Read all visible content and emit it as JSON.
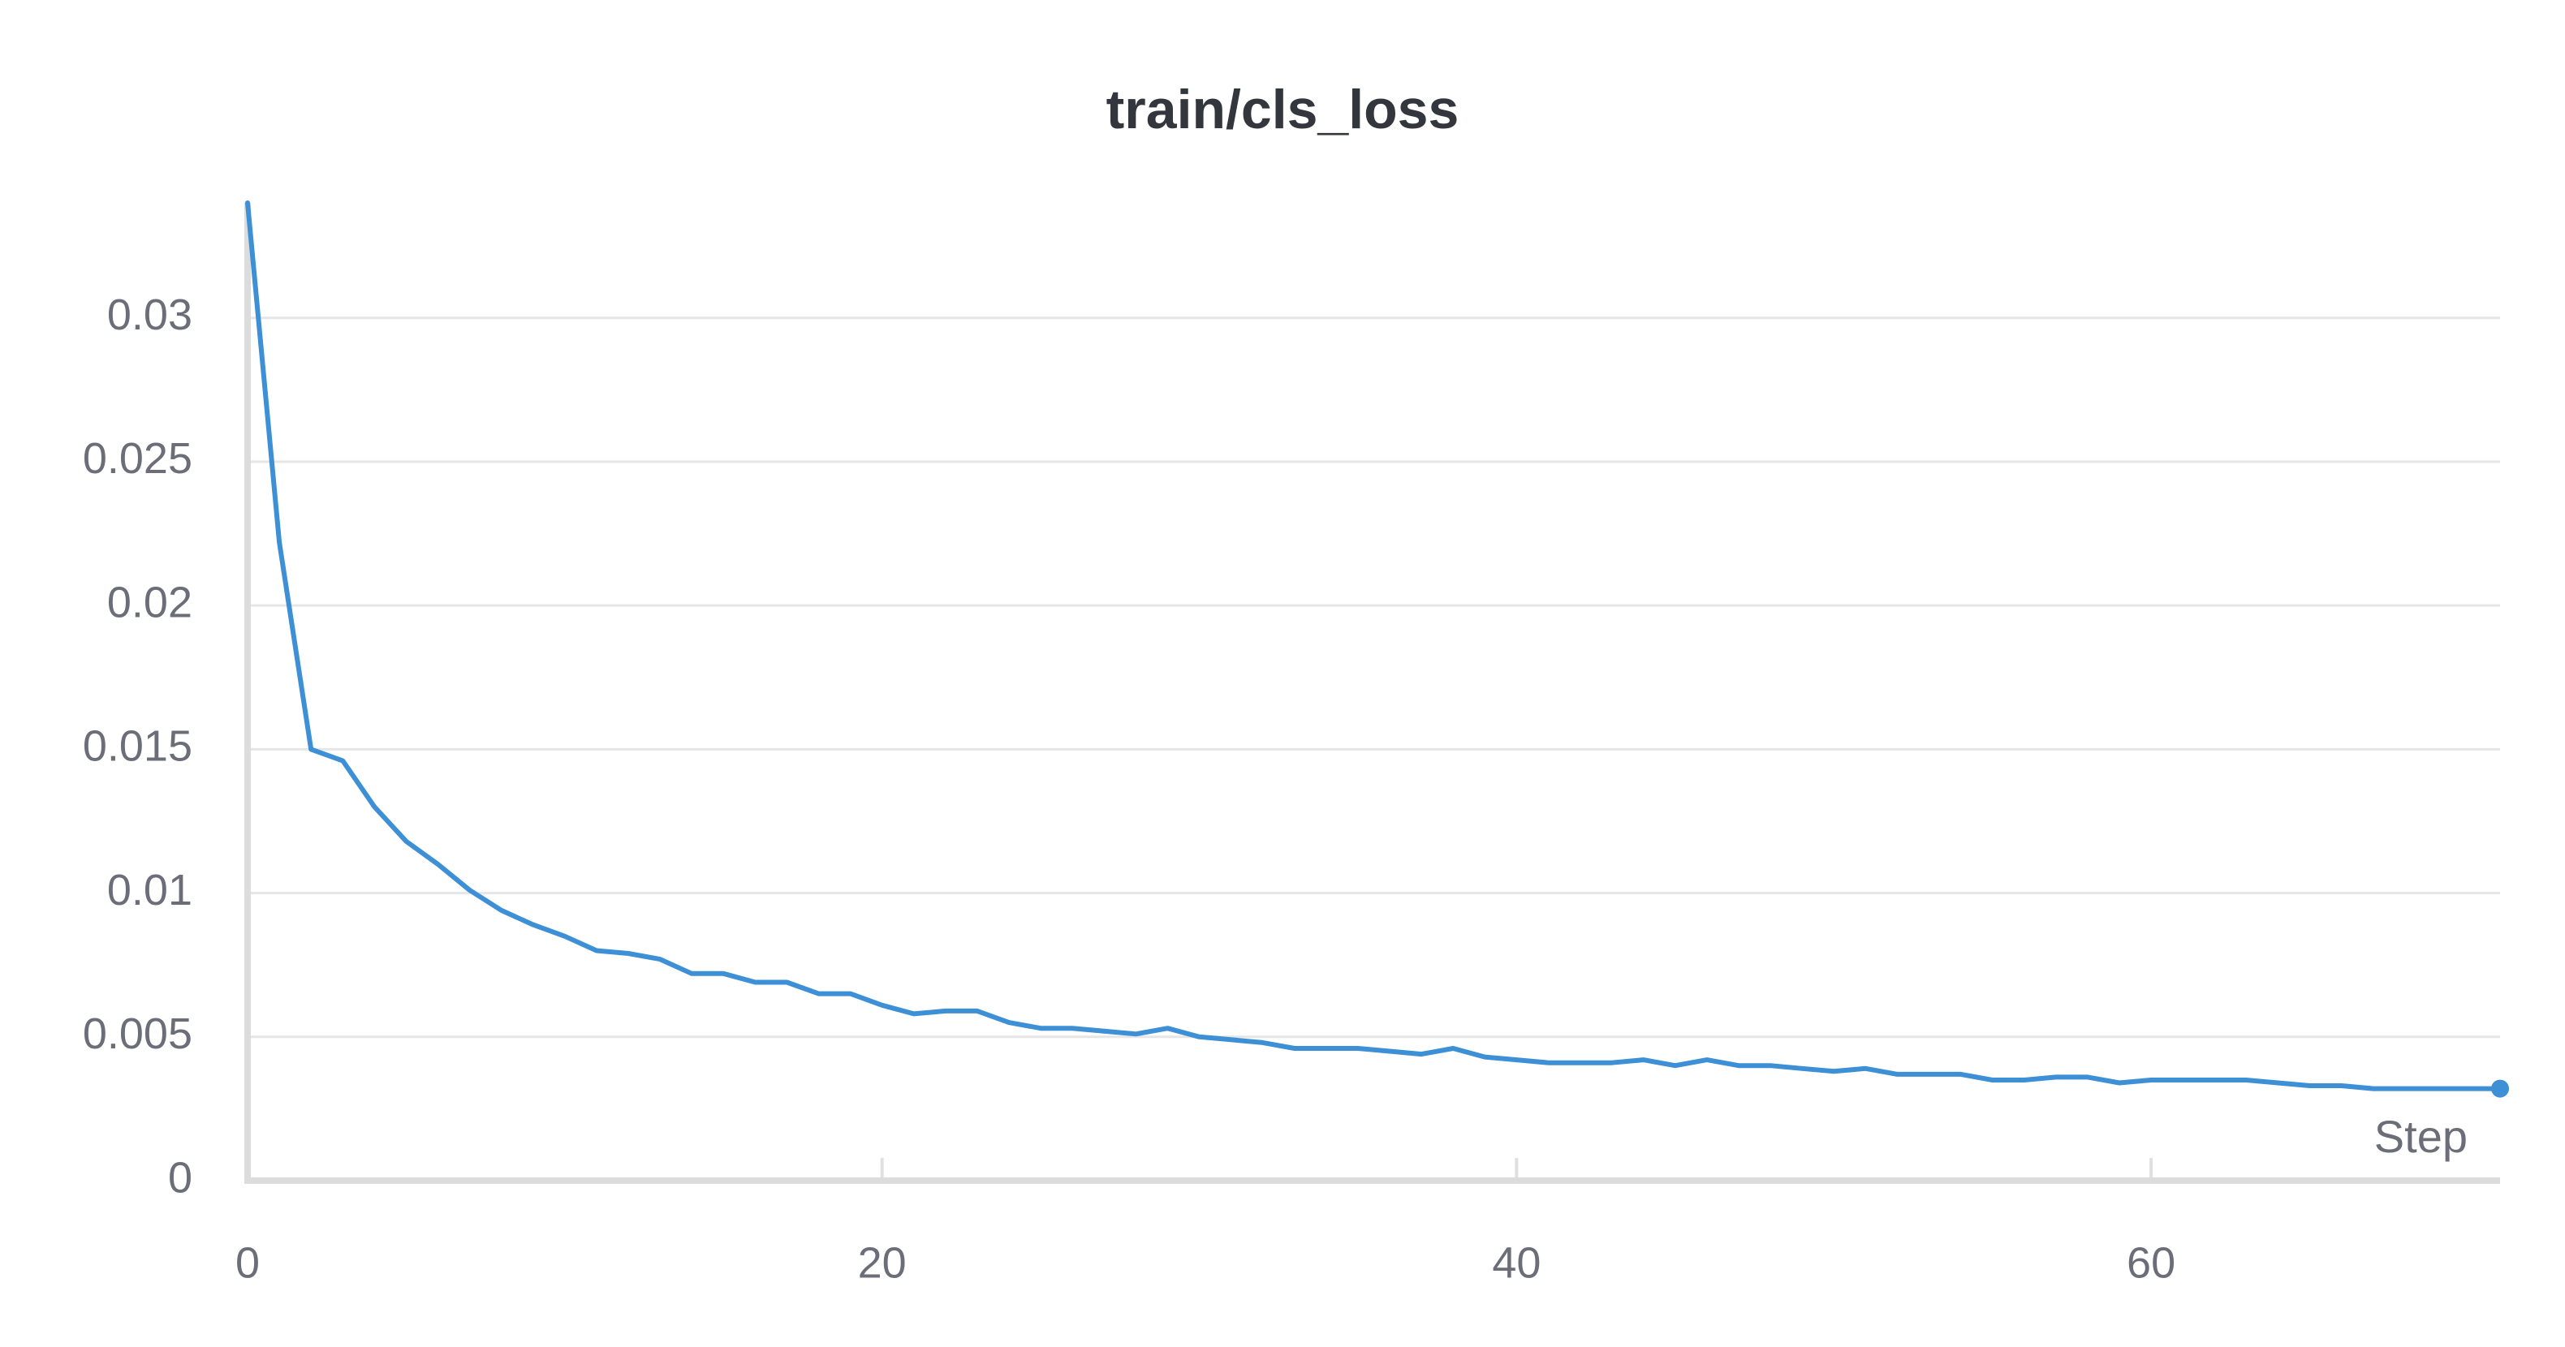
{
  "chart_data": {
    "type": "line",
    "title": "train/cls_loss",
    "xlabel": "Step",
    "ylabel": "",
    "xlim": [
      0,
      71
    ],
    "ylim": [
      0,
      0.034
    ],
    "xticks": [
      0,
      20,
      40,
      60
    ],
    "xtick_labels": [
      "0",
      "20",
      "40",
      "60"
    ],
    "yticks": [
      0,
      0.005,
      0.01,
      0.015,
      0.02,
      0.025,
      0.03
    ],
    "ytick_labels": [
      "0",
      "0.005",
      "0.01",
      "0.015",
      "0.02",
      "0.025",
      "0.03"
    ],
    "grid": "horizontal",
    "series": [
      {
        "color": "#3d8fd6",
        "x": [
          0,
          1,
          2,
          3,
          4,
          5,
          6,
          7,
          8,
          9,
          10,
          11,
          12,
          13,
          14,
          15,
          16,
          17,
          18,
          19,
          20,
          21,
          22,
          23,
          24,
          25,
          26,
          27,
          28,
          29,
          30,
          31,
          32,
          33,
          34,
          35,
          36,
          37,
          38,
          39,
          40,
          41,
          42,
          43,
          44,
          45,
          46,
          47,
          48,
          49,
          50,
          51,
          52,
          53,
          54,
          55,
          56,
          57,
          58,
          59,
          60,
          61,
          62,
          63,
          64,
          65,
          66,
          67,
          68,
          69,
          70,
          71
        ],
        "y": [
          0.034,
          0.0222,
          0.015,
          0.0146,
          0.013,
          0.0118,
          0.011,
          0.0101,
          0.0094,
          0.0089,
          0.0085,
          0.008,
          0.0079,
          0.0077,
          0.0072,
          0.0072,
          0.0069,
          0.0069,
          0.0065,
          0.0065,
          0.0061,
          0.0058,
          0.0059,
          0.0059,
          0.0055,
          0.0053,
          0.0053,
          0.0052,
          0.0051,
          0.0053,
          0.005,
          0.0049,
          0.0048,
          0.0046,
          0.0046,
          0.0046,
          0.0045,
          0.0044,
          0.0046,
          0.0043,
          0.0042,
          0.0041,
          0.0041,
          0.0041,
          0.0042,
          0.004,
          0.0042,
          0.004,
          0.004,
          0.0039,
          0.0038,
          0.0039,
          0.0037,
          0.0037,
          0.0037,
          0.0035,
          0.0035,
          0.0036,
          0.0036,
          0.0034,
          0.0035,
          0.0035,
          0.0035,
          0.0035,
          0.0034,
          0.0033,
          0.0033,
          0.0032,
          0.0032,
          0.0032,
          0.0032,
          0.0032
        ]
      }
    ]
  }
}
